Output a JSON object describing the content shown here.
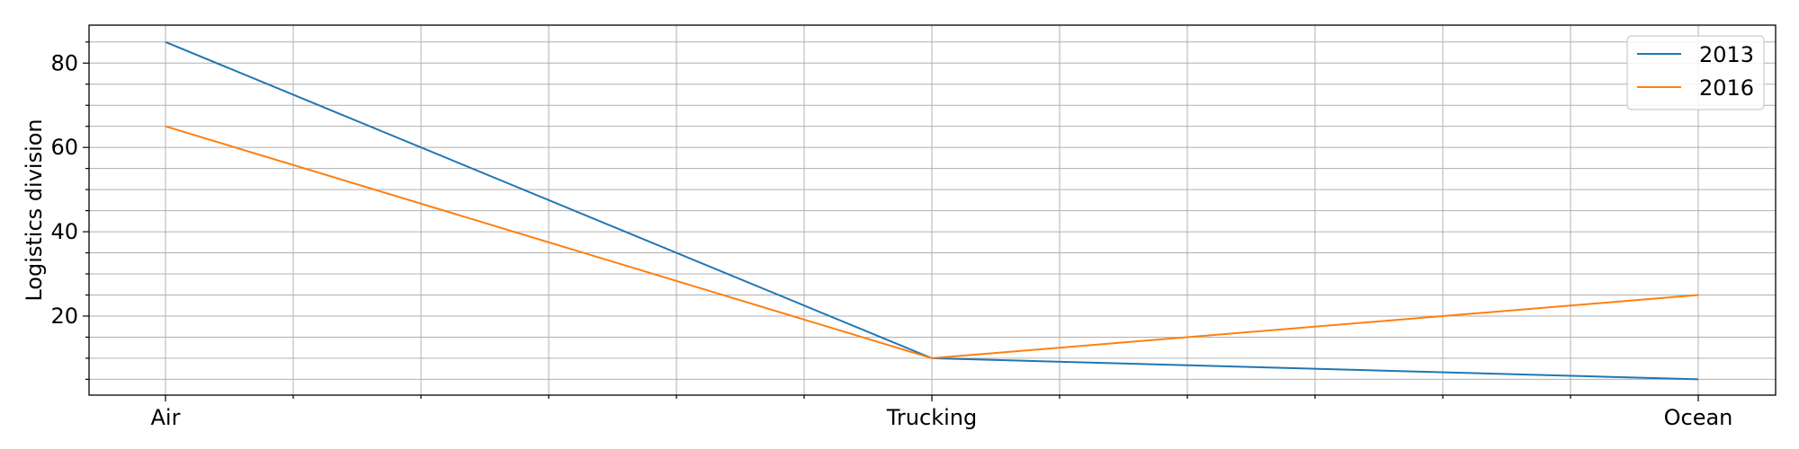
{
  "chart_data": {
    "type": "line",
    "categories": [
      "Air",
      "Trucking",
      "Ocean"
    ],
    "series": [
      {
        "name": "2013",
        "values": [
          85,
          10,
          5
        ],
        "color": "#1f77b4"
      },
      {
        "name": "2016",
        "values": [
          65,
          10,
          25
        ],
        "color": "#ff7f0e"
      }
    ],
    "title": "",
    "xlabel": "",
    "ylabel": "Logistics division",
    "ylim": [
      1.25,
      89
    ],
    "yticks": [
      20,
      40,
      60,
      80
    ],
    "y_minor_step": 5,
    "x_minor_ticks": 11,
    "grid": "both (major and minor)",
    "legend_position": "top-right"
  }
}
